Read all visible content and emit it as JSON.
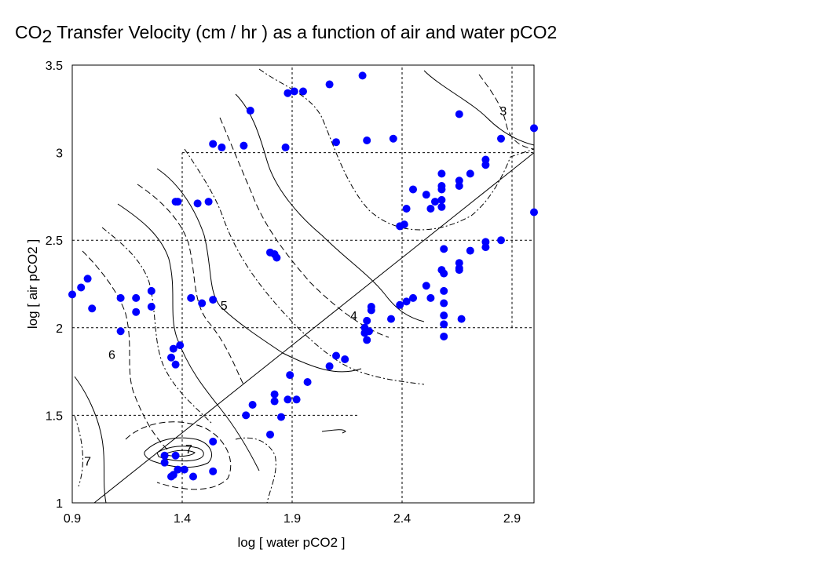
{
  "title": {
    "prefix": "CO",
    "subscript": "2",
    "rest": " Transfer Velocity (cm / hr ) as a function of air and water pCO2"
  },
  "colors": {
    "points": "#0000ff",
    "lines": "#000000",
    "background": "#ffffff"
  },
  "chart_data": {
    "type": "scatter",
    "title": "CO2 Transfer Velocity (cm / hr ) as a function of air and water pCO2",
    "xlabel": "log [ water pCO2 ]",
    "ylabel": "log [ air pCO2 ]",
    "xlim": [
      0.9,
      3.0
    ],
    "ylim": [
      1.0,
      3.5
    ],
    "xticks": [
      "0.9",
      "1.4",
      "1.9",
      "2.4",
      "2.9"
    ],
    "yticks": [
      "1",
      "1.5",
      "2",
      "2.5",
      "3",
      "3.5"
    ],
    "grid": "dashed partial",
    "reference_line": {
      "label": "",
      "from": [
        1.0,
        1.0
      ],
      "to": [
        3.0,
        3.0
      ]
    },
    "contour_labels": [
      {
        "text": "3",
        "x": 2.86,
        "y": 3.24
      },
      {
        "text": "4",
        "x": 2.18,
        "y": 2.07
      },
      {
        "text": "5",
        "x": 1.59,
        "y": 2.13
      },
      {
        "text": "6",
        "x": 1.08,
        "y": 1.85
      },
      {
        "text": "7",
        "x": 0.97,
        "y": 1.24
      },
      {
        "text": "7",
        "x": 1.43,
        "y": 1.31
      }
    ],
    "points": [
      [
        0.9,
        2.19
      ],
      [
        0.94,
        2.23
      ],
      [
        0.97,
        2.28
      ],
      [
        0.99,
        2.11
      ],
      [
        1.12,
        2.17
      ],
      [
        1.12,
        1.98
      ],
      [
        1.19,
        2.17
      ],
      [
        1.19,
        2.09
      ],
      [
        1.26,
        2.21
      ],
      [
        1.26,
        2.12
      ],
      [
        1.37,
        2.72
      ],
      [
        1.38,
        2.72
      ],
      [
        1.47,
        2.71
      ],
      [
        1.52,
        2.72
      ],
      [
        1.35,
        1.83
      ],
      [
        1.36,
        1.88
      ],
      [
        1.37,
        1.79
      ],
      [
        1.39,
        1.9
      ],
      [
        1.44,
        2.17
      ],
      [
        1.49,
        2.14
      ],
      [
        1.54,
        2.16
      ],
      [
        1.54,
        3.05
      ],
      [
        1.58,
        3.03
      ],
      [
        1.68,
        3.04
      ],
      [
        1.71,
        3.24
      ],
      [
        1.87,
        3.03
      ],
      [
        1.88,
        3.34
      ],
      [
        1.91,
        3.35
      ],
      [
        1.95,
        3.35
      ],
      [
        2.07,
        3.39
      ],
      [
        2.1,
        3.06
      ],
      [
        2.22,
        3.44
      ],
      [
        2.24,
        3.07
      ],
      [
        2.36,
        3.08
      ],
      [
        1.8,
        2.43
      ],
      [
        1.82,
        2.42
      ],
      [
        1.83,
        2.4
      ],
      [
        1.32,
        1.27
      ],
      [
        1.32,
        1.23
      ],
      [
        1.35,
        1.15
      ],
      [
        1.36,
        1.16
      ],
      [
        1.37,
        1.27
      ],
      [
        1.38,
        1.19
      ],
      [
        1.41,
        1.19
      ],
      [
        1.45,
        1.15
      ],
      [
        1.54,
        1.35
      ],
      [
        1.54,
        1.18
      ],
      [
        1.69,
        1.5
      ],
      [
        1.72,
        1.56
      ],
      [
        1.8,
        1.39
      ],
      [
        1.82,
        1.58
      ],
      [
        1.82,
        1.62
      ],
      [
        1.85,
        1.49
      ],
      [
        1.88,
        1.59
      ],
      [
        1.89,
        1.73
      ],
      [
        1.92,
        1.59
      ],
      [
        1.97,
        1.69
      ],
      [
        2.07,
        1.78
      ],
      [
        2.1,
        1.84
      ],
      [
        2.14,
        1.82
      ],
      [
        2.23,
        2.0
      ],
      [
        2.23,
        1.97
      ],
      [
        2.24,
        2.04
      ],
      [
        2.24,
        1.93
      ],
      [
        2.25,
        1.98
      ],
      [
        2.26,
        2.1
      ],
      [
        2.26,
        2.12
      ],
      [
        2.35,
        2.05
      ],
      [
        2.39,
        2.13
      ],
      [
        2.39,
        2.58
      ],
      [
        2.41,
        2.59
      ],
      [
        2.42,
        2.68
      ],
      [
        2.42,
        2.15
      ],
      [
        2.45,
        2.17
      ],
      [
        2.45,
        2.79
      ],
      [
        2.51,
        2.76
      ],
      [
        2.51,
        2.24
      ],
      [
        2.53,
        2.17
      ],
      [
        2.53,
        2.68
      ],
      [
        2.55,
        2.72
      ],
      [
        2.58,
        2.88
      ],
      [
        2.58,
        2.79
      ],
      [
        2.58,
        2.81
      ],
      [
        2.58,
        2.73
      ],
      [
        2.58,
        2.69
      ],
      [
        2.59,
        2.45
      ],
      [
        2.58,
        2.33
      ],
      [
        2.59,
        2.31
      ],
      [
        2.59,
        2.21
      ],
      [
        2.59,
        2.14
      ],
      [
        2.59,
        2.07
      ],
      [
        2.59,
        2.02
      ],
      [
        2.59,
        1.95
      ],
      [
        2.66,
        2.33
      ],
      [
        2.66,
        2.34
      ],
      [
        2.66,
        2.37
      ],
      [
        2.66,
        2.84
      ],
      [
        2.66,
        2.81
      ],
      [
        2.66,
        3.22
      ],
      [
        2.67,
        2.05
      ],
      [
        2.71,
        2.44
      ],
      [
        2.71,
        2.88
      ],
      [
        2.78,
        2.96
      ],
      [
        2.78,
        2.93
      ],
      [
        2.78,
        2.49
      ],
      [
        2.78,
        2.46
      ],
      [
        2.85,
        2.5
      ],
      [
        2.85,
        3.08
      ],
      [
        3.0,
        3.14
      ],
      [
        3.0,
        2.66
      ]
    ]
  }
}
